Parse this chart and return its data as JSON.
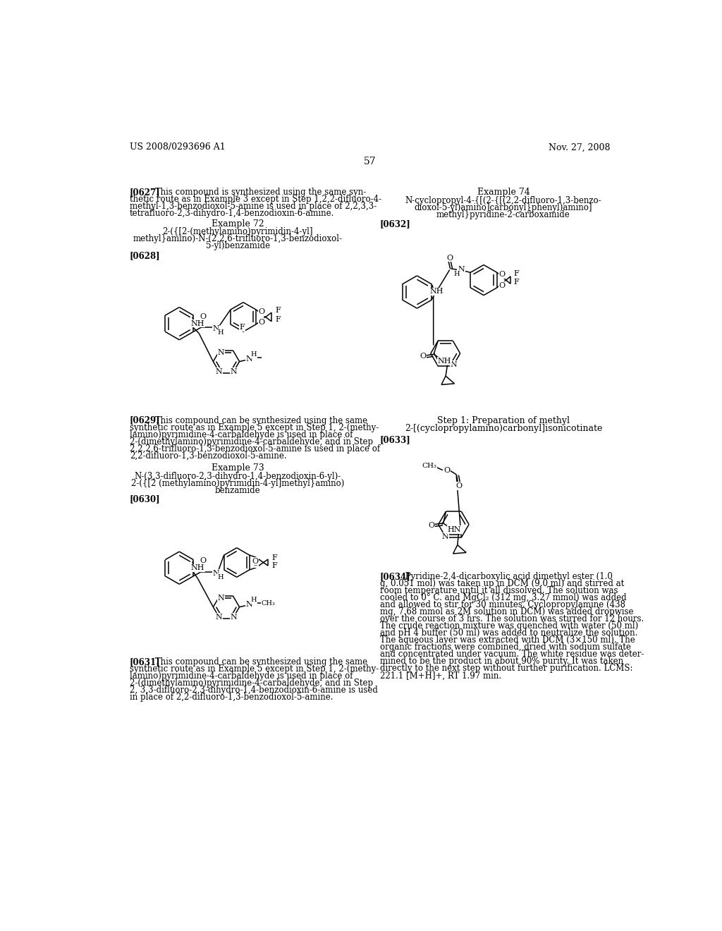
{
  "background_color": "#ffffff",
  "header_left": "US 2008/0293696 A1",
  "header_right": "Nov. 27, 2008",
  "page_number": "57"
}
